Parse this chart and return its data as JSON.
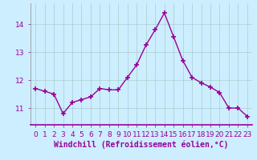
{
  "x": [
    0,
    1,
    2,
    3,
    4,
    5,
    6,
    7,
    8,
    9,
    10,
    11,
    12,
    13,
    14,
    15,
    16,
    17,
    18,
    19,
    20,
    21,
    22,
    23
  ],
  "y": [
    11.7,
    11.6,
    11.5,
    10.8,
    11.2,
    11.3,
    11.4,
    11.7,
    11.65,
    11.65,
    12.1,
    12.55,
    13.25,
    13.8,
    14.4,
    13.55,
    12.7,
    12.1,
    11.9,
    11.75,
    11.55,
    11.0,
    11.0,
    10.7
  ],
  "line_color": "#990099",
  "marker": "+",
  "marker_size": 5,
  "marker_lw": 1.2,
  "bg_color": "#cceeff",
  "grid_color": "#aacccc",
  "xlabel": "Windchill (Refroidissement éolien,°C)",
  "xlabel_fontsize": 7,
  "tick_fontsize": 6.5,
  "ylim": [
    10.4,
    14.75
  ],
  "yticks": [
    11,
    12,
    13,
    14
  ],
  "xticks": [
    0,
    1,
    2,
    3,
    4,
    5,
    6,
    7,
    8,
    9,
    10,
    11,
    12,
    13,
    14,
    15,
    16,
    17,
    18,
    19,
    20,
    21,
    22,
    23
  ],
  "line_width": 1.0,
  "xlabel_color": "#990099",
  "tick_label_color": "#990099",
  "spine_color": "#888888",
  "xlim": [
    -0.5,
    23.5
  ]
}
